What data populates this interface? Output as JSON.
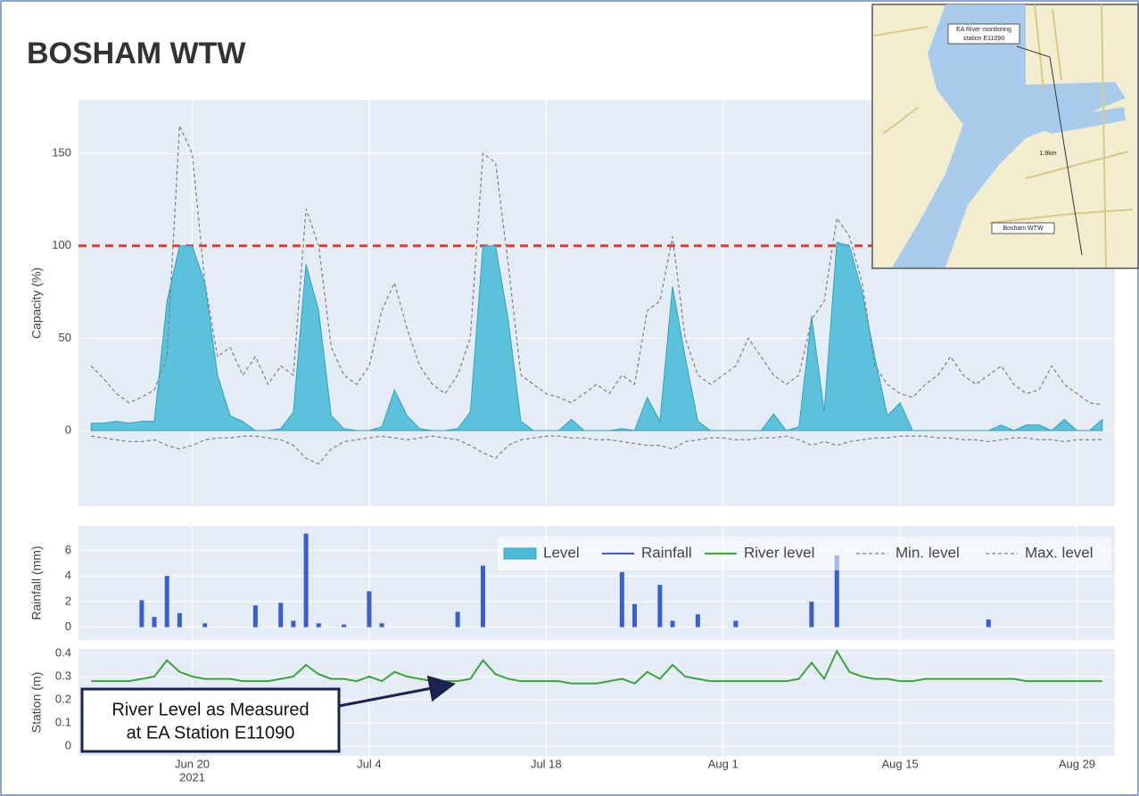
{
  "title": "BOSHAM WTW",
  "chart_data": [
    {
      "type": "area",
      "ylabel": "Capacity (%)",
      "x": [
        "2021-06-12",
        "2021-06-13",
        "2021-06-14",
        "2021-06-15",
        "2021-06-16",
        "2021-06-17",
        "2021-06-18",
        "2021-06-19",
        "2021-06-20",
        "2021-06-21",
        "2021-06-22",
        "2021-06-23",
        "2021-06-24",
        "2021-06-25",
        "2021-06-26",
        "2021-06-27",
        "2021-06-28",
        "2021-06-29",
        "2021-06-30",
        "2021-07-01",
        "2021-07-02",
        "2021-07-03",
        "2021-07-04",
        "2021-07-05",
        "2021-07-06",
        "2021-07-07",
        "2021-07-08",
        "2021-07-09",
        "2021-07-10",
        "2021-07-11",
        "2021-07-12",
        "2021-07-13",
        "2021-07-14",
        "2021-07-15",
        "2021-07-16",
        "2021-07-17",
        "2021-07-18",
        "2021-07-19",
        "2021-07-20",
        "2021-07-21",
        "2021-07-22",
        "2021-07-23",
        "2021-07-24",
        "2021-07-25",
        "2021-07-26",
        "2021-07-27",
        "2021-07-28",
        "2021-07-29",
        "2021-07-30",
        "2021-07-31",
        "2021-08-01",
        "2021-08-02",
        "2021-08-03",
        "2021-08-04",
        "2021-08-05",
        "2021-08-06",
        "2021-08-07",
        "2021-08-08",
        "2021-08-09",
        "2021-08-10",
        "2021-08-11",
        "2021-08-12",
        "2021-08-13",
        "2021-08-14",
        "2021-08-15",
        "2021-08-16",
        "2021-08-17",
        "2021-08-18",
        "2021-08-19",
        "2021-08-20",
        "2021-08-21",
        "2021-08-22",
        "2021-08-23",
        "2021-08-24",
        "2021-08-25",
        "2021-08-26",
        "2021-08-27",
        "2021-08-28",
        "2021-08-29",
        "2021-08-30",
        "2021-08-31"
      ],
      "series": [
        {
          "name": "Level",
          "color": "#4dbcd8",
          "fill": true,
          "values": [
            4,
            4,
            5,
            4,
            5,
            5,
            70,
            100,
            100,
            80,
            30,
            8,
            5,
            0,
            0,
            1,
            10,
            90,
            65,
            8,
            1,
            0,
            0,
            2,
            22,
            8,
            1,
            0,
            0,
            1,
            10,
            100,
            100,
            60,
            5,
            0,
            0,
            0,
            6,
            0,
            0,
            0,
            1,
            0,
            18,
            5,
            78,
            40,
            5,
            0,
            0,
            0,
            0,
            0,
            9,
            0,
            2,
            62,
            10,
            102,
            100,
            75,
            40,
            8,
            15,
            0,
            0,
            0,
            0,
            0,
            0,
            0,
            3,
            0,
            3,
            3,
            0,
            6,
            0,
            0,
            6
          ]
        },
        {
          "name": "Min. level",
          "color": "#7f7f7f",
          "dash": true,
          "values": [
            -3,
            -4,
            -5,
            -6,
            -6,
            -5,
            -8,
            -10,
            -8,
            -5,
            -4,
            -4,
            -3,
            -3,
            -4,
            -5,
            -8,
            -15,
            -18,
            -10,
            -6,
            -5,
            -4,
            -3,
            -4,
            -5,
            -4,
            -3,
            -4,
            -5,
            -8,
            -12,
            -15,
            -8,
            -5,
            -4,
            -3,
            -3,
            -4,
            -4,
            -5,
            -5,
            -6,
            -7,
            -8,
            -8,
            -10,
            -6,
            -5,
            -4,
            -4,
            -5,
            -5,
            -4,
            -4,
            -3,
            -5,
            -8,
            -6,
            -8,
            -6,
            -5,
            -4,
            -4,
            -3,
            -3,
            -3,
            -4,
            -4,
            -5,
            -5,
            -6,
            -5,
            -4,
            -4,
            -5,
            -5,
            -6,
            -5,
            -5,
            -5
          ]
        },
        {
          "name": "Max. level",
          "color": "#7f7f7f",
          "dash": true,
          "values": [
            35,
            28,
            20,
            15,
            18,
            22,
            40,
            165,
            150,
            80,
            40,
            45,
            30,
            40,
            25,
            35,
            30,
            120,
            100,
            45,
            30,
            25,
            35,
            65,
            80,
            55,
            35,
            25,
            20,
            30,
            50,
            150,
            145,
            90,
            30,
            25,
            20,
            18,
            15,
            20,
            25,
            20,
            30,
            25,
            65,
            70,
            105,
            50,
            30,
            25,
            30,
            35,
            50,
            40,
            30,
            25,
            30,
            60,
            70,
            115,
            105,
            80,
            35,
            25,
            20,
            18,
            25,
            30,
            40,
            30,
            25,
            30,
            35,
            25,
            20,
            22,
            35,
            25,
            20,
            15,
            14
          ]
        }
      ],
      "hline": {
        "value": 100,
        "color": "#e8392f"
      },
      "xlim": [
        "2021-06-11",
        "2021-09-01"
      ],
      "xticks": [
        "2021-06-20",
        "2021-07-04",
        "2021-07-18",
        "2021-08-01",
        "2021-08-15",
        "2021-08-29"
      ],
      "ylim": [
        -41,
        179
      ],
      "yticks": [
        0,
        50,
        100,
        150
      ],
      "grid": true
    },
    {
      "type": "bar",
      "ylabel": "Rainfall (mm)",
      "legend": "top-right",
      "x": [
        "2021-06-12",
        "2021-06-13",
        "2021-06-14",
        "2021-06-15",
        "2021-06-16",
        "2021-06-17",
        "2021-06-18",
        "2021-06-19",
        "2021-06-20",
        "2021-06-21",
        "2021-06-22",
        "2021-06-23",
        "2021-06-24",
        "2021-06-25",
        "2021-06-26",
        "2021-06-27",
        "2021-06-28",
        "2021-06-29",
        "2021-06-30",
        "2021-07-01",
        "2021-07-02",
        "2021-07-03",
        "2021-07-04",
        "2021-07-05",
        "2021-07-06",
        "2021-07-07",
        "2021-07-08",
        "2021-07-09",
        "2021-07-10",
        "2021-07-11",
        "2021-07-12",
        "2021-07-13",
        "2021-07-14",
        "2021-07-15",
        "2021-07-16",
        "2021-07-17",
        "2021-07-18",
        "2021-07-19",
        "2021-07-20",
        "2021-07-21",
        "2021-07-22",
        "2021-07-23",
        "2021-07-24",
        "2021-07-25",
        "2021-07-26",
        "2021-07-27",
        "2021-07-28",
        "2021-07-29",
        "2021-07-30",
        "2021-07-31",
        "2021-08-01",
        "2021-08-02",
        "2021-08-03",
        "2021-08-04",
        "2021-08-05",
        "2021-08-06",
        "2021-08-07",
        "2021-08-08",
        "2021-08-09",
        "2021-08-10",
        "2021-08-11",
        "2021-08-12",
        "2021-08-13",
        "2021-08-14",
        "2021-08-15",
        "2021-08-16",
        "2021-08-17",
        "2021-08-18",
        "2021-08-19",
        "2021-08-20",
        "2021-08-21",
        "2021-08-22",
        "2021-08-23",
        "2021-08-24",
        "2021-08-25",
        "2021-08-26",
        "2021-08-27",
        "2021-08-28",
        "2021-08-29",
        "2021-08-30",
        "2021-08-31"
      ],
      "series": [
        {
          "name": "Rainfall",
          "color": "#3a5fcd",
          "values": [
            0,
            0,
            0,
            0,
            2.1,
            0.8,
            4,
            1.1,
            0,
            0.3,
            0,
            0,
            0,
            1.7,
            0,
            1.9,
            0.5,
            7.3,
            0.3,
            0,
            0.2,
            0,
            2.8,
            0.3,
            0,
            0,
            0,
            0,
            0,
            1.2,
            0,
            4.8,
            0,
            0,
            0,
            0,
            0,
            0,
            0,
            0,
            0,
            0,
            4.3,
            1.8,
            0,
            3.3,
            0.5,
            0,
            1,
            0,
            0,
            0.5,
            0,
            0,
            0,
            0,
            0,
            2,
            0,
            5.6,
            0,
            0,
            0,
            0,
            0,
            0,
            0,
            0,
            0,
            0,
            0,
            0.6,
            0,
            0,
            0,
            0,
            0,
            0,
            0,
            0,
            0
          ]
        }
      ],
      "xlim": [
        "2021-06-11",
        "2021-09-01"
      ],
      "xticks": [
        "2021-06-20",
        "2021-07-04",
        "2021-07-18",
        "2021-08-01",
        "2021-08-15",
        "2021-08-29"
      ],
      "ylim": [
        -1,
        7.9
      ],
      "yticks": [
        0,
        2,
        4,
        6
      ],
      "grid": true
    },
    {
      "type": "line",
      "ylabel": "Station (m)",
      "x": [
        "2021-06-12",
        "2021-06-13",
        "2021-06-14",
        "2021-06-15",
        "2021-06-16",
        "2021-06-17",
        "2021-06-18",
        "2021-06-19",
        "2021-06-20",
        "2021-06-21",
        "2021-06-22",
        "2021-06-23",
        "2021-06-24",
        "2021-06-25",
        "2021-06-26",
        "2021-06-27",
        "2021-06-28",
        "2021-06-29",
        "2021-06-30",
        "2021-07-01",
        "2021-07-02",
        "2021-07-03",
        "2021-07-04",
        "2021-07-05",
        "2021-07-06",
        "2021-07-07",
        "2021-07-08",
        "2021-07-09",
        "2021-07-10",
        "2021-07-11",
        "2021-07-12",
        "2021-07-13",
        "2021-07-14",
        "2021-07-15",
        "2021-07-16",
        "2021-07-17",
        "2021-07-18",
        "2021-07-19",
        "2021-07-20",
        "2021-07-21",
        "2021-07-22",
        "2021-07-23",
        "2021-07-24",
        "2021-07-25",
        "2021-07-26",
        "2021-07-27",
        "2021-07-28",
        "2021-07-29",
        "2021-07-30",
        "2021-07-31",
        "2021-08-01",
        "2021-08-02",
        "2021-08-03",
        "2021-08-04",
        "2021-08-05",
        "2021-08-06",
        "2021-08-07",
        "2021-08-08",
        "2021-08-09",
        "2021-08-10",
        "2021-08-11",
        "2021-08-12",
        "2021-08-13",
        "2021-08-14",
        "2021-08-15",
        "2021-08-16",
        "2021-08-17",
        "2021-08-18",
        "2021-08-19",
        "2021-08-20",
        "2021-08-21",
        "2021-08-22",
        "2021-08-23",
        "2021-08-24",
        "2021-08-25",
        "2021-08-26",
        "2021-08-27",
        "2021-08-28",
        "2021-08-29",
        "2021-08-30",
        "2021-08-31"
      ],
      "series": [
        {
          "name": "River level",
          "color": "#3aa53a",
          "values": [
            0.28,
            0.28,
            0.28,
            0.28,
            0.29,
            0.3,
            0.37,
            0.32,
            0.3,
            0.29,
            0.29,
            0.29,
            0.28,
            0.28,
            0.28,
            0.29,
            0.3,
            0.35,
            0.31,
            0.29,
            0.29,
            0.28,
            0.3,
            0.28,
            0.32,
            0.3,
            0.29,
            0.28,
            0.28,
            0.28,
            0.29,
            0.37,
            0.31,
            0.29,
            0.28,
            0.28,
            0.28,
            0.28,
            0.27,
            0.27,
            0.27,
            0.28,
            0.29,
            0.27,
            0.32,
            0.29,
            0.35,
            0.3,
            0.29,
            0.28,
            0.28,
            0.28,
            0.28,
            0.28,
            0.28,
            0.28,
            0.29,
            0.36,
            0.29,
            0.41,
            0.32,
            0.3,
            0.29,
            0.29,
            0.28,
            0.28,
            0.29,
            0.29,
            0.29,
            0.29,
            0.29,
            0.29,
            0.29,
            0.29,
            0.28,
            0.28,
            0.28,
            0.28,
            0.28,
            0.28,
            0.28
          ]
        }
      ],
      "xlim": [
        "2021-06-11",
        "2021-09-01"
      ],
      "xticks": [
        {
          "value": "2021-06-20",
          "label": "Jun 20"
        },
        {
          "value": "2021-07-04",
          "label": "Jul 4"
        },
        {
          "value": "2021-07-18",
          "label": "Jul 18"
        },
        {
          "value": "2021-08-01",
          "label": "Aug 1"
        },
        {
          "value": "2021-08-15",
          "label": "Aug 15"
        },
        {
          "value": "2021-08-29",
          "label": "Aug 29"
        }
      ],
      "x_year": "2021",
      "ylim": [
        -0.042,
        0.419
      ],
      "yticks": [
        0,
        0.1,
        0.2,
        0.3,
        0.4
      ],
      "grid": true
    }
  ],
  "annotation": {
    "lines": [
      "River Level as Measured",
      "at EA Station E11090"
    ]
  },
  "map": {
    "labels": [
      "EA River monitoring",
      "station E11090",
      "1.9km",
      "Bosham WTW"
    ]
  }
}
